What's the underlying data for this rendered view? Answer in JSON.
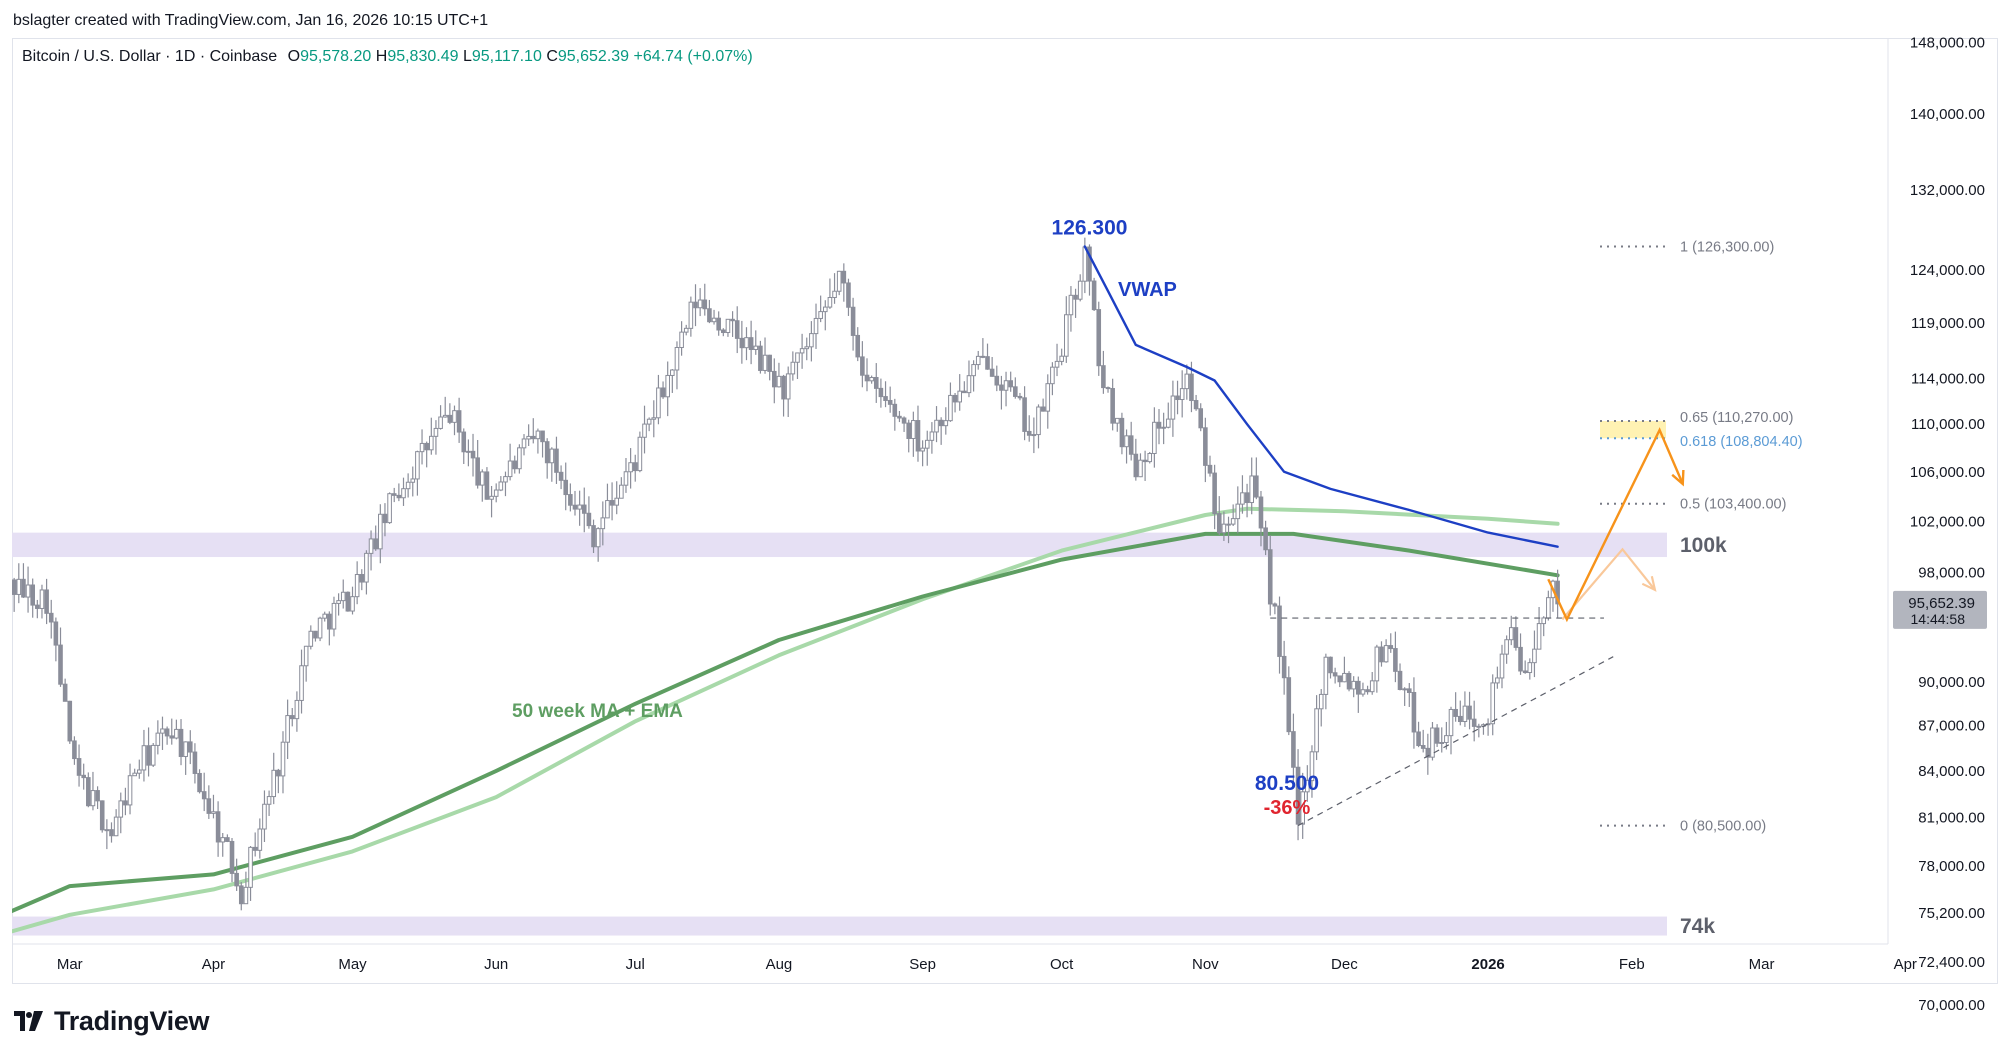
{
  "header": {
    "created_by": "bslagter created with TradingView.com, Jan 16, 2026 10:15 UTC+1"
  },
  "symbol_line": {
    "symbol": "Bitcoin / U.S. Dollar · 1D · Coinbase",
    "o_label": "O",
    "o_value": "95,578.20",
    "h_label": "H",
    "h_value": "95,830.49",
    "l_label": "L",
    "l_value": "95,117.10",
    "c_label": "C",
    "c_value": "95,652.39",
    "change": "+64.74 (+0.07%)"
  },
  "footer": {
    "brand": "TradingView",
    "logo_icon": "tradingview-logo-icon"
  },
  "colors": {
    "up": "#089981",
    "candle": "#8a8d99",
    "vwap": "#1d3fc4",
    "ma50": "#5e9e62",
    "ema50": "#a8d9a9",
    "zone": "#e6e0f4",
    "orange": "#f7931a",
    "orange_faded": "#f9c89a",
    "fib_highlight": "#fff2b3",
    "down_red": "#e0252f",
    "fib_blue": "#5b9bd5",
    "price_tag": "#b2b5be"
  },
  "chart_data": {
    "type": "candlestick",
    "title": "Bitcoin / U.S. Dollar · 1D · Coinbase",
    "x_ticks": [
      "Mar",
      "Apr",
      "May",
      "Jun",
      "Jul",
      "Aug",
      "Sep",
      "Oct",
      "Nov",
      "Dec",
      "2026",
      "Feb",
      "Mar",
      "Apr"
    ],
    "y_ticks": [
      "148,000.00",
      "140,000.00",
      "132,000.00",
      "124,000.00",
      "119,000.00",
      "114,000.00",
      "110,000.00",
      "106,000.00",
      "102,000.00",
      "98,000.00",
      "90,000.00",
      "87,000.00",
      "84,000.00",
      "81,000.00",
      "78,000.00",
      "75,200.00",
      "72,400.00",
      "70,000.00"
    ],
    "y_scale": "log",
    "ylim": [
      67500,
      153000
    ],
    "last_price": {
      "value": "95,652.39",
      "countdown": "14:44:58"
    },
    "price_path": [
      [
        "2025-02-12",
        97500
      ],
      [
        "2025-02-24",
        96000
      ],
      [
        "2025-03-02",
        84000
      ],
      [
        "2025-03-10",
        80000
      ],
      [
        "2025-03-15",
        84000
      ],
      [
        "2025-03-23",
        87000
      ],
      [
        "2025-03-30",
        82500
      ],
      [
        "2025-04-07",
        76500
      ],
      [
        "2025-04-15",
        84500
      ],
      [
        "2025-04-22",
        93500
      ],
      [
        "2025-05-01",
        96500
      ],
      [
        "2025-05-10",
        104000
      ],
      [
        "2025-05-22",
        111000
      ],
      [
        "2025-05-30",
        104000
      ],
      [
        "2025-06-10",
        109000
      ],
      [
        "2025-06-22",
        101000
      ],
      [
        "2025-07-01",
        107000
      ],
      [
        "2025-07-10",
        116000
      ],
      [
        "2025-07-14",
        121000
      ],
      [
        "2025-07-25",
        117000
      ],
      [
        "2025-08-02",
        113000
      ],
      [
        "2025-08-10",
        119000
      ],
      [
        "2025-08-14",
        123500
      ],
      [
        "2025-08-20",
        113500
      ],
      [
        "2025-09-01",
        108500
      ],
      [
        "2025-09-15",
        116000
      ],
      [
        "2025-09-25",
        109000
      ],
      [
        "2025-10-01",
        117000
      ],
      [
        "2025-10-06",
        125500
      ],
      [
        "2025-10-10",
        113000
      ],
      [
        "2025-10-17",
        106500
      ],
      [
        "2025-10-28",
        114000
      ],
      [
        "2025-11-04",
        102000
      ],
      [
        "2025-11-11",
        105000
      ],
      [
        "2025-11-17",
        92500
      ],
      [
        "2025-11-21",
        80500
      ],
      [
        "2025-11-27",
        91500
      ],
      [
        "2025-12-05",
        89500
      ],
      [
        "2025-12-10",
        93000
      ],
      [
        "2025-12-18",
        85500
      ],
      [
        "2025-12-25",
        87500
      ],
      [
        "2026-01-01",
        88000
      ],
      [
        "2026-01-05",
        93500
      ],
      [
        "2026-01-10",
        90500
      ],
      [
        "2026-01-14",
        97000
      ],
      [
        "2026-01-16",
        95652
      ]
    ],
    "series": [
      {
        "name": "VWAP",
        "points": [
          [
            "2025-10-06",
            126300
          ],
          [
            "2025-10-11",
            122000
          ],
          [
            "2025-10-17",
            117000
          ],
          [
            "2025-10-28",
            115000
          ],
          [
            "2025-11-03",
            113800
          ],
          [
            "2025-11-10",
            110000
          ],
          [
            "2025-11-18",
            106000
          ],
          [
            "2025-11-28",
            104600
          ],
          [
            "2025-12-15",
            102900
          ],
          [
            "2026-01-01",
            101100
          ],
          [
            "2026-01-16",
            100000
          ]
        ]
      },
      {
        "name": "50 week MA",
        "points": [
          [
            "2025-02-12",
            74800
          ],
          [
            "2025-03-01",
            76800
          ],
          [
            "2025-04-01",
            77500
          ],
          [
            "2025-05-01",
            79800
          ],
          [
            "2025-06-01",
            84000
          ],
          [
            "2025-07-01",
            88500
          ],
          [
            "2025-08-01",
            93000
          ],
          [
            "2025-09-01",
            96200
          ],
          [
            "2025-10-01",
            99000
          ],
          [
            "2025-11-01",
            101000
          ],
          [
            "2025-11-20",
            101000
          ],
          [
            "2025-12-15",
            99700
          ],
          [
            "2026-01-16",
            97800
          ]
        ]
      },
      {
        "name": "EMA",
        "points": [
          [
            "2025-02-12",
            73800
          ],
          [
            "2025-03-01",
            75100
          ],
          [
            "2025-04-01",
            76600
          ],
          [
            "2025-05-01",
            78900
          ],
          [
            "2025-06-01",
            82300
          ],
          [
            "2025-07-01",
            87300
          ],
          [
            "2025-08-01",
            91900
          ],
          [
            "2025-09-01",
            96000
          ],
          [
            "2025-10-01",
            99700
          ],
          [
            "2025-11-01",
            102500
          ],
          [
            "2025-11-10",
            103000
          ],
          [
            "2025-12-01",
            102800
          ],
          [
            "2026-01-01",
            102200
          ],
          [
            "2026-01-16",
            101800
          ]
        ]
      }
    ],
    "zones": [
      {
        "label": "100k",
        "from": 99200,
        "to": 101100
      },
      {
        "label": "74k",
        "from": 73900,
        "to": 75000
      }
    ],
    "fib_levels": [
      {
        "label": "1 (126,300.00)",
        "value": 126300
      },
      {
        "label": "0.65 (110,270.00)",
        "value": 110270
      },
      {
        "label": "0.618 (108,804.40)",
        "value": 108804.4
      },
      {
        "label": "0.5 (103,400.00)",
        "value": 103400
      },
      {
        "label": "0 (80,500.00)",
        "value": 80500
      }
    ],
    "annotations": {
      "high": "126.300",
      "vwap": "VWAP",
      "ma_label": "50 week MA + EMA",
      "low": "80.500",
      "drawdown": "-36%"
    },
    "projection_paths": {
      "main": [
        [
          "2026-01-14",
          97500
        ],
        [
          "2026-01-18",
          94500
        ],
        [
          "2026-02-07",
          109500
        ],
        [
          "2026-02-12",
          105000
        ]
      ],
      "alt": [
        [
          "2026-01-17",
          94500
        ],
        [
          "2026-01-30",
          99800
        ],
        [
          "2026-02-06",
          96700
        ]
      ]
    },
    "support_line": [
      [
        "2025-11-21",
        80500
      ],
      [
        "2026-01-28",
        91800
      ]
    ],
    "resistance_line": {
      "value": 94600,
      "from": "2025-11-15",
      "to": "2026-01-26"
    }
  }
}
